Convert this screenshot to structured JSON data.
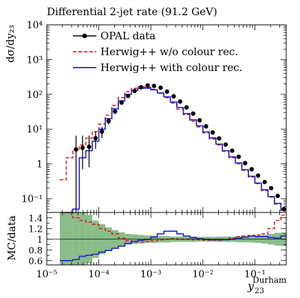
{
  "chart_data": {
    "type": "line",
    "title": "Differential 2-jet rate (91.2 GeV)",
    "ylabel": "dσ/dy₂₃",
    "xlabel_main": "y",
    "xlabel_sub": "23",
    "xlabel_sup": "Durham",
    "ratio_ylabel": "MC/data",
    "x_scale": "log",
    "y_scale": "log",
    "xlim": [
      1e-05,
      0.4
    ],
    "ylim": [
      0.04,
      10000
    ],
    "ratio_ylim": [
      0.52,
      1.5
    ],
    "grid": false,
    "legend_position": "top-left",
    "x_ticks": [
      {
        "value": 1e-05,
        "label": "10⁻⁵"
      },
      {
        "value": 0.0001,
        "label": "10⁻⁴"
      },
      {
        "value": 0.001,
        "label": "10⁻³"
      },
      {
        "value": 0.01,
        "label": "10⁻²"
      },
      {
        "value": 0.1,
        "label": "10⁻¹"
      }
    ],
    "y_ticks": [
      {
        "value": 0.1,
        "label": "10⁻¹"
      },
      {
        "value": 1,
        "label": "1"
      },
      {
        "value": 10,
        "label": "10¹"
      },
      {
        "value": 100,
        "label": "10²"
      },
      {
        "value": 1000,
        "label": "10³"
      },
      {
        "value": 10000,
        "label": "10⁴"
      }
    ],
    "ratio_ticks": [
      {
        "value": 0.6,
        "label": "0.6"
      },
      {
        "value": 0.8,
        "label": "0.8"
      },
      {
        "value": 1.0,
        "label": "1"
      },
      {
        "value": 1.2,
        "label": "1.2"
      },
      {
        "value": 1.4,
        "label": "1.4"
      }
    ],
    "bin_edges": [
      1.78e-05,
      2.37e-05,
      3.16e-05,
      4.22e-05,
      5.62e-05,
      7.5e-05,
      0.0001,
      0.000133,
      0.000178,
      0.000237,
      0.000316,
      0.000422,
      0.000562,
      0.00075,
      0.001,
      0.00133,
      0.00178,
      0.00237,
      0.00316,
      0.00422,
      0.00562,
      0.0075,
      0.01,
      0.0133,
      0.0178,
      0.0237,
      0.0316,
      0.0422,
      0.0562,
      0.075,
      0.1,
      0.133,
      0.178,
      0.237,
      0.316,
      0.4
    ],
    "data_points": {
      "name": "OPAL data",
      "color": "#000000",
      "x": [
        3.65e-05,
        4.87e-05,
        6.5e-05,
        8.66e-05,
        0.000115,
        0.000154,
        0.000205,
        0.000274,
        0.000365,
        0.000487,
        0.00065,
        0.000866,
        0.00115,
        0.00154,
        0.00205,
        0.00274,
        0.00365,
        0.00487,
        0.0065,
        0.00866,
        0.0115,
        0.0154,
        0.0205,
        0.0274,
        0.0365,
        0.0487,
        0.065,
        0.0866,
        0.115,
        0.154,
        0.205,
        0.274,
        0.36
      ],
      "y": [
        2.6,
        2.9,
        3.1,
        5.5,
        8.5,
        17,
        32,
        58,
        90,
        125,
        160,
        180,
        175,
        155,
        120,
        88,
        62,
        42,
        28,
        18,
        12,
        8,
        5.4,
        3.6,
        2.4,
        1.6,
        1.05,
        0.7,
        0.46,
        0.3,
        0.2,
        0.12,
        0.05
      ],
      "y_low": [
        0.04,
        0.7,
        0.8,
        2.7,
        5.5,
        13.6,
        27.6,
        53,
        84,
        118,
        153,
        172,
        167,
        148,
        115,
        84,
        59,
        40,
        26.6,
        17.1,
        11.4,
        7.6,
        5.1,
        3.4,
        2.27,
        1.51,
        0.99,
        0.66,
        0.43,
        0.28,
        0.185,
        0.108,
        0.042
      ],
      "y_high": [
        6.5,
        6.5,
        6.5,
        8.5,
        11.5,
        20.4,
        36.4,
        63,
        96,
        132,
        167,
        188,
        183,
        162,
        125,
        92,
        65,
        44,
        29.4,
        18.9,
        12.6,
        8.4,
        5.7,
        3.8,
        2.53,
        1.69,
        1.11,
        0.74,
        0.49,
        0.32,
        0.215,
        0.132,
        0.058
      ]
    },
    "series": [
      {
        "name": "Herwig++ w/o colour rec.",
        "color": "#e0201b",
        "style": "dashed",
        "values": [
          0.35,
          1.5,
          2.5,
          3.5,
          5.5,
          8.5,
          14,
          25,
          48,
          80,
          120,
          150,
          165,
          160,
          140,
          108,
          80,
          56,
          38,
          26,
          17,
          11.5,
          7.8,
          5.2,
          3.5,
          2.3,
          1.5,
          1.0,
          0.65,
          0.42,
          0.27,
          0.17,
          0.11,
          0.07,
          0.045
        ],
        "ratio": [
          1.5,
          1.5,
          1.4,
          1.35,
          1.32,
          1.28,
          1.2,
          1.15,
          1.1,
          1.02,
          0.97,
          0.95,
          0.95,
          0.96,
          0.97,
          0.99,
          1.0,
          1.01,
          1.0,
          1.0,
          0.99,
          0.99,
          0.98,
          0.98,
          0.98,
          1.0,
          1.02,
          1.05,
          1.06,
          1.07,
          1.08,
          1.1,
          1.2,
          1.35,
          1.45
        ]
      },
      {
        "name": "Herwig++ with colour rec.",
        "color": "#1f1fcc",
        "style": "solid",
        "values": [
          0.04,
          0.04,
          0.05,
          1.5,
          2.4,
          4.5,
          10,
          20,
          38,
          65,
          100,
          130,
          150,
          150,
          135,
          110,
          85,
          60,
          42,
          28,
          18.5,
          12.4,
          8.3,
          5.6,
          3.7,
          2.4,
          1.6,
          1.06,
          0.68,
          0.44,
          0.28,
          0.18,
          0.115,
          0.073,
          0.048
        ],
        "ratio": [
          0.6,
          0.6,
          0.62,
          0.68,
          0.7,
          0.72,
          0.76,
          0.79,
          0.83,
          0.87,
          0.92,
          0.96,
          0.98,
          1.0,
          1.04,
          1.1,
          1.15,
          1.15,
          1.1,
          1.06,
          1.03,
          1.01,
          1.0,
          0.99,
          0.99,
          0.99,
          1.0,
          1.02,
          1.04,
          1.06,
          1.05,
          1.05,
          1.03,
          1.02,
          1.06
        ]
      }
    ],
    "data_uncertainty_band": {
      "color": "#74b274",
      "half_width": [
        0.5,
        0.5,
        0.5,
        0.5,
        0.45,
        0.35,
        0.28,
        0.22,
        0.17,
        0.13,
        0.1,
        0.09,
        0.08,
        0.07,
        0.07,
        0.06,
        0.06,
        0.05,
        0.05,
        0.05,
        0.05,
        0.045,
        0.045,
        0.045,
        0.05,
        0.05,
        0.05,
        0.055,
        0.06,
        0.06,
        0.07,
        0.08,
        0.1,
        0.12,
        0.13
      ]
    }
  }
}
